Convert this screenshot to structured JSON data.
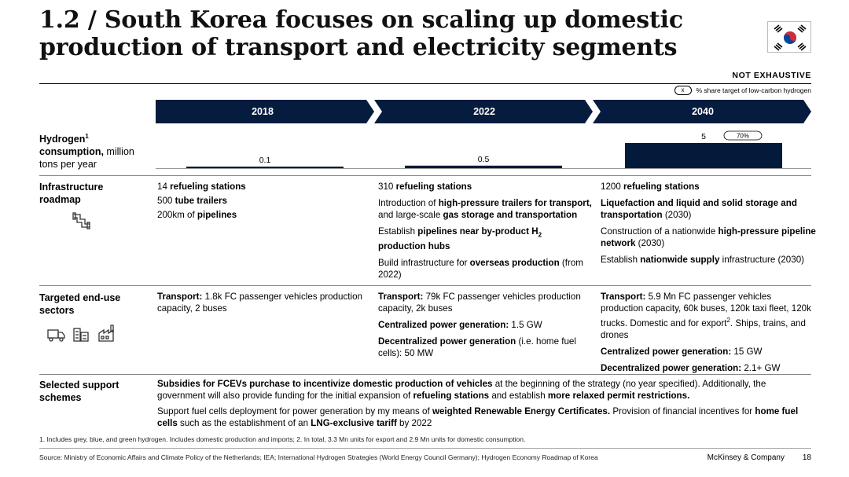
{
  "title": "1.2 / South Korea focuses on scaling up domestic production of transport and electricity segments",
  "not_exhaustive": "NOT EXHAUSTIVE",
  "legend": {
    "pill": "x",
    "text": "% share target of low-carbon hydrogen"
  },
  "timeline": [
    "2018",
    "2022",
    "2040"
  ],
  "rows": {
    "consumption": {
      "label_bold": "Hydrogen",
      "sup": "1",
      "label_bold2": "consumption,",
      "label_rest": " million",
      "label_line3": "tons per year"
    },
    "infrastructure": {
      "label": "Infrastructure roadmap"
    },
    "enduse": {
      "label": "Targeted end-use sectors"
    },
    "support": {
      "label": "Selected support schemes"
    }
  },
  "chart_data": {
    "type": "bar",
    "categories": [
      "2018",
      "2022",
      "2040"
    ],
    "values": [
      0.1,
      0.5,
      5
    ],
    "value_labels": [
      "0.1",
      "0.5",
      "5"
    ],
    "share_pill": {
      "category": "2040",
      "text": "70%"
    },
    "ylabel": "Hydrogen consumption, million tons per year",
    "colors": {
      "bar": "#041a3a",
      "pill_border": "#000000"
    }
  },
  "infra": {
    "c2018": {
      "l1a": "14 ",
      "l1b": "refueling stations",
      "l2a": "500 ",
      "l2b": "tube trailers",
      "l3a": "200km of ",
      "l3b": "pipelines"
    },
    "c2022": {
      "l1a": "310 ",
      "l1b": "refueling stations",
      "l2a": "Introduction of ",
      "l2b": "high-pressure trailers for transport,",
      "l2c": " and large-scale ",
      "l2d": "gas storage and transportation",
      "l3a": "Establish ",
      "l3b": "pipelines near by-product H",
      "l3sub": "2",
      "l3c": "production hubs",
      "l4a": "Build infrastructure for ",
      "l4b": "overseas production",
      "l4c": " (from 2022)"
    },
    "c2040": {
      "l1a": "1200 ",
      "l1b": "refueling stations",
      "l2b": "Liquefaction and liquid and solid storage and transportation",
      "l2c": " (2030)",
      "l3a": "Construction of a nationwide ",
      "l3b": "high-pressure pipeline network",
      "l3c": " (2030)",
      "l4a": "Establish ",
      "l4b": "nationwide supply",
      "l4c": " infrastructure (2030)"
    }
  },
  "enduse": {
    "c2018": {
      "l1b": "Transport:",
      "l1c": " 1.8k FC passenger vehicles production capacity, 2 buses"
    },
    "c2022": {
      "l1b": "Transport:",
      "l1c": " 79k FC passenger vehicles production capacity, 2k buses",
      "l2b": "Centralized power generation:",
      "l2c": " 1.5 GW",
      "l3b": "Decentralized power generation",
      "l3c": " (i.e. home fuel cells): ",
      "l3d": "50 MW"
    },
    "c2040": {
      "l1b": "Transport:",
      "l1c": " 5.9 Mn FC passenger vehicles production capacity, 60k buses, 120k taxi fleet, 120k trucks. Domestic and for export",
      "l1sup": "2",
      "l1d": ". Ships, trains, and drones",
      "l2b": "Centralized power generation:",
      "l2c": " 15 GW",
      "l3b": "Decentralized power generation:",
      "l3c": " 2.1+ GW"
    }
  },
  "support": {
    "p1a": "Subsidies for FCEVs purchase to incentivize domestic production of vehicles",
    "p1b": " at the beginning of the strategy (no year specified). Additionally, the government will also provide funding for the initial expansion of ",
    "p1c": "refueling stations",
    "p1d": " and establish ",
    "p1e": "more relaxed permit restrictions.",
    "p2a": "Support fuel cells deployment for power generation by my means of ",
    "p2b": "weighted Renewable Energy Certificates.",
    "p2c": " Provision of financial incentives for ",
    "p2d": "home fuel cells",
    "p2e": " such as the establishment of an ",
    "p2f": "LNG-exclusive tariff",
    "p2g": " by 2022"
  },
  "footnotes": "1.    Includes grey, blue, and green hydrogen. Includes domestic production and imports;     2. In total, 3.3 Mn units for export and 2.9 Mn units for domestic consumption.",
  "source": "Source: Ministry of Economic Affairs and Climate Policy of the Netherlands; IEA;  International Hydrogen Strategies (World Energy Council Germany); Hydrogen Economy Roadmap of Korea",
  "brand": "McKinsey & Company",
  "page": "18",
  "icons": [
    "south-korea-flag-icon",
    "pipeline-icon",
    "truck-icon",
    "buildings-icon",
    "factory-icon"
  ],
  "colors": {
    "chevron": "#051c3f",
    "bar": "#041a3a",
    "flag_red": "#cd2e3a",
    "flag_blue": "#0047a0"
  }
}
